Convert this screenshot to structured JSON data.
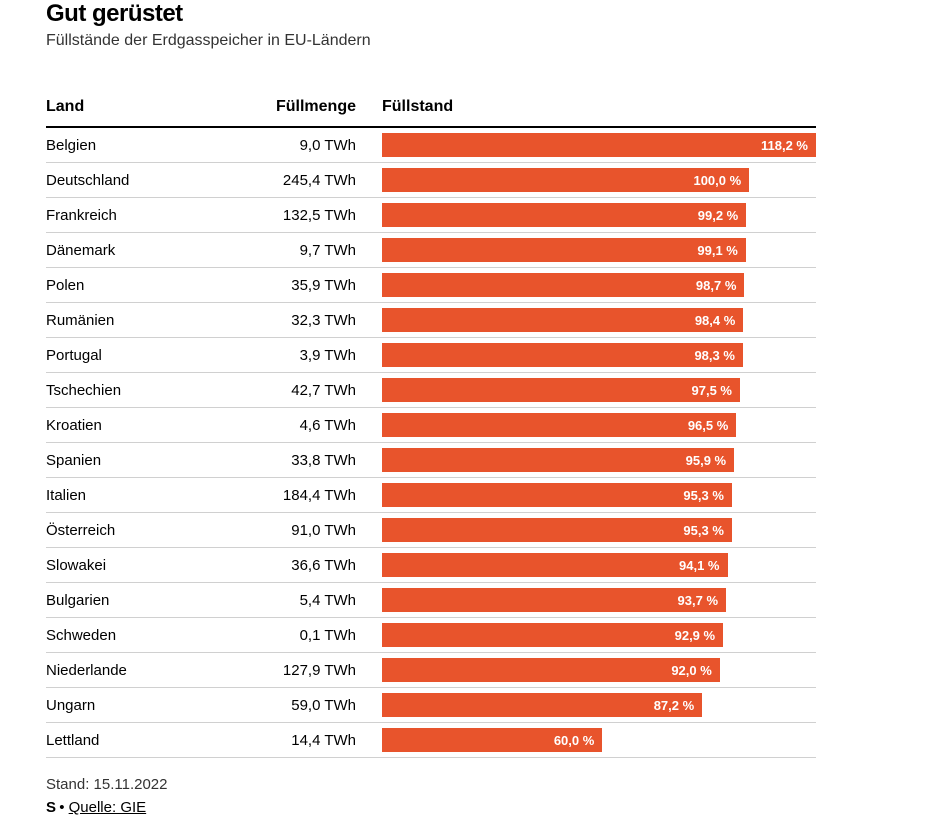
{
  "title": "Gut gerüstet",
  "subtitle": "Füllstände der Erdgasspeicher in EU-Ländern",
  "columns": {
    "country": "Land",
    "volume": "Füllmenge",
    "fill": "Füllstand"
  },
  "unit": "TWh",
  "percent_suffix": " %",
  "bar_max_percent": 118.2,
  "bar_color": "#e8542c",
  "bar_text_color": "#ffffff",
  "border_color": "#d0d0d0",
  "header_border_color": "#000000",
  "background_color": "#ffffff",
  "font_family": "sans-serif",
  "rows": [
    {
      "country": "Belgien",
      "volume": "9,0 TWh",
      "percent_label": "118,2 %",
      "percent_value": 118.2
    },
    {
      "country": "Deutschland",
      "volume": "245,4 TWh",
      "percent_label": "100,0 %",
      "percent_value": 100.0
    },
    {
      "country": "Frankreich",
      "volume": "132,5 TWh",
      "percent_label": "99,2 %",
      "percent_value": 99.2
    },
    {
      "country": "Dänemark",
      "volume": "9,7 TWh",
      "percent_label": "99,1 %",
      "percent_value": 99.1
    },
    {
      "country": "Polen",
      "volume": "35,9 TWh",
      "percent_label": "98,7 %",
      "percent_value": 98.7
    },
    {
      "country": "Rumänien",
      "volume": "32,3 TWh",
      "percent_label": "98,4 %",
      "percent_value": 98.4
    },
    {
      "country": "Portugal",
      "volume": "3,9 TWh",
      "percent_label": "98,3 %",
      "percent_value": 98.3
    },
    {
      "country": "Tschechien",
      "volume": "42,7 TWh",
      "percent_label": "97,5 %",
      "percent_value": 97.5
    },
    {
      "country": "Kroatien",
      "volume": "4,6 TWh",
      "percent_label": "96,5 %",
      "percent_value": 96.5
    },
    {
      "country": "Spanien",
      "volume": "33,8 TWh",
      "percent_label": "95,9 %",
      "percent_value": 95.9
    },
    {
      "country": "Italien",
      "volume": "184,4 TWh",
      "percent_label": "95,3 %",
      "percent_value": 95.3
    },
    {
      "country": "Österreich",
      "volume": "91,0 TWh",
      "percent_label": "95,3 %",
      "percent_value": 95.3
    },
    {
      "country": "Slowakei",
      "volume": "36,6 TWh",
      "percent_label": "94,1 %",
      "percent_value": 94.1
    },
    {
      "country": "Bulgarien",
      "volume": "5,4 TWh",
      "percent_label": "93,7 %",
      "percent_value": 93.7
    },
    {
      "country": "Schweden",
      "volume": "0,1 TWh",
      "percent_label": "92,9 %",
      "percent_value": 92.9
    },
    {
      "country": "Niederlande",
      "volume": "127,9 TWh",
      "percent_label": "92,0 %",
      "percent_value": 92.0
    },
    {
      "country": "Ungarn",
      "volume": "59,0 TWh",
      "percent_label": "87,2 %",
      "percent_value": 87.2
    },
    {
      "country": "Lettland",
      "volume": "14,4 TWh",
      "percent_label": "60,0 %",
      "percent_value": 60.0
    }
  ],
  "footer_date": "Stand: 15.11.2022",
  "source_prefix": "S",
  "source_bullet": "•",
  "source_text": "Quelle: GIE"
}
